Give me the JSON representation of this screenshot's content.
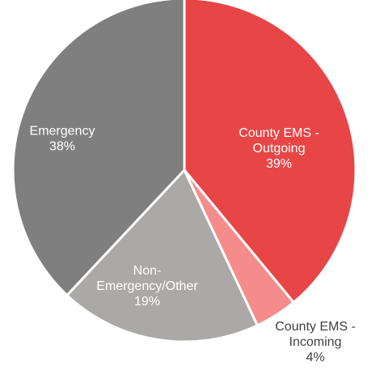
{
  "chart_data": {
    "type": "pie",
    "title": "",
    "slices": [
      {
        "label_lines": [
          "County EMS -",
          "Outgoing"
        ],
        "value": 39,
        "value_label": "39%",
        "color": "#E84646"
      },
      {
        "label_lines": [
          "County EMS -",
          "Incoming"
        ],
        "value": 4,
        "value_label": "4%",
        "color": "#F58C8C"
      },
      {
        "label_lines": [
          "Non-",
          "Emergency/Other"
        ],
        "value": 19,
        "value_label": "19%",
        "color": "#ABA9A8"
      },
      {
        "label_lines": [
          "Emergency"
        ],
        "value": 38,
        "value_label": "38%",
        "color": "#7F7F7F"
      }
    ],
    "start_angle_deg": 0,
    "direction": "clockwise",
    "legend": "none",
    "labels": "data labels on slices"
  }
}
